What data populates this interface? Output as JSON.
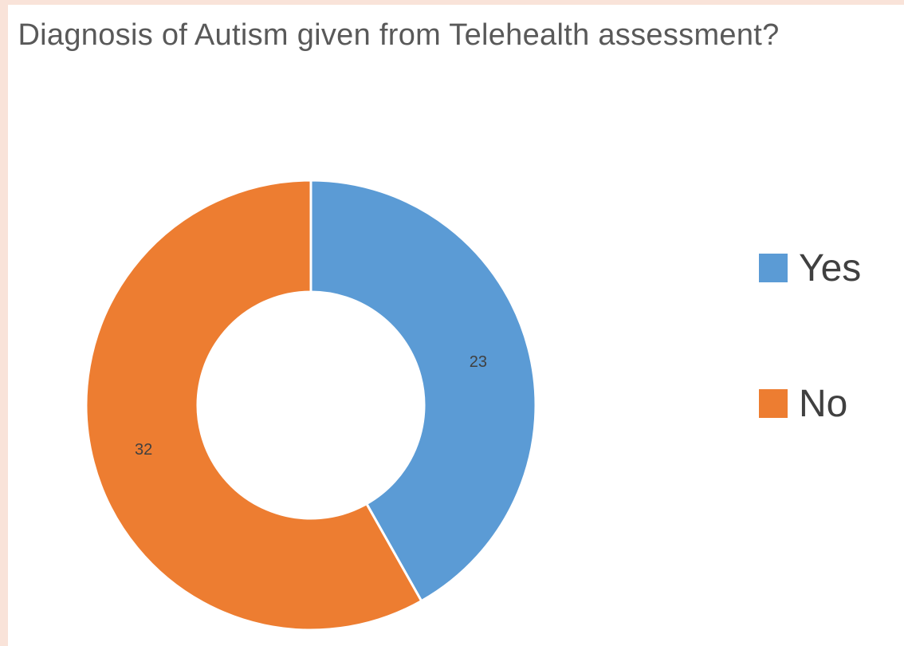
{
  "chart_data": {
    "type": "pie",
    "variant": "doughnut",
    "title": "Diagnosis of Autism given from Telehealth assessment?",
    "categories": [
      "Yes",
      "No"
    ],
    "values": [
      23,
      32
    ],
    "colors": [
      "#5b9bd5",
      "#ed7d31"
    ],
    "data_labels": [
      "23",
      "32"
    ],
    "legend_position": "right"
  }
}
